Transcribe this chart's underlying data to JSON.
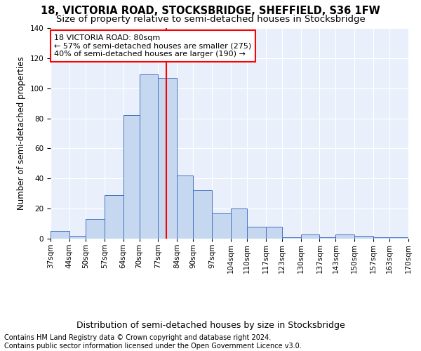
{
  "title": "18, VICTORIA ROAD, STOCKSBRIDGE, SHEFFIELD, S36 1FW",
  "subtitle": "Size of property relative to semi-detached houses in Stocksbridge",
  "xlabel": "Distribution of semi-detached houses by size in Stocksbridge",
  "ylabel": "Number of semi-detached properties",
  "footer": "Contains HM Land Registry data © Crown copyright and database right 2024.\nContains public sector information licensed under the Open Government Licence v3.0.",
  "bin_labels": [
    "37sqm",
    "44sqm",
    "50sqm",
    "57sqm",
    "64sqm",
    "70sqm",
    "77sqm",
    "84sqm",
    "90sqm",
    "97sqm",
    "104sqm",
    "110sqm",
    "117sqm",
    "123sqm",
    "130sqm",
    "137sqm",
    "143sqm",
    "150sqm",
    "157sqm",
    "163sqm",
    "170sqm"
  ],
  "bin_edges": [
    37,
    44,
    50,
    57,
    64,
    70,
    77,
    84,
    90,
    97,
    104,
    110,
    117,
    123,
    130,
    137,
    143,
    150,
    157,
    163,
    170
  ],
  "counts": [
    5,
    2,
    13,
    29,
    82,
    109,
    107,
    42,
    32,
    17,
    20,
    8,
    8,
    1,
    3,
    1,
    3,
    2,
    1,
    1
  ],
  "bar_color": "#c5d8f0",
  "bar_edge_color": "#4472c4",
  "vline_x": 80,
  "vline_color": "red",
  "annotation_text": "18 VICTORIA ROAD: 80sqm\n← 57% of semi-detached houses are smaller (275)\n40% of semi-detached houses are larger (190) →",
  "annotation_box_color": "white",
  "annotation_box_edge": "red",
  "ylim": [
    0,
    140
  ],
  "bg_color": "#eaf0fb",
  "grid_color": "white",
  "title_fontsize": 10.5,
  "subtitle_fontsize": 9.5,
  "ylabel_fontsize": 8.5,
  "xlabel_fontsize": 9,
  "tick_fontsize": 7.5,
  "annotation_fontsize": 8,
  "footer_fontsize": 7
}
